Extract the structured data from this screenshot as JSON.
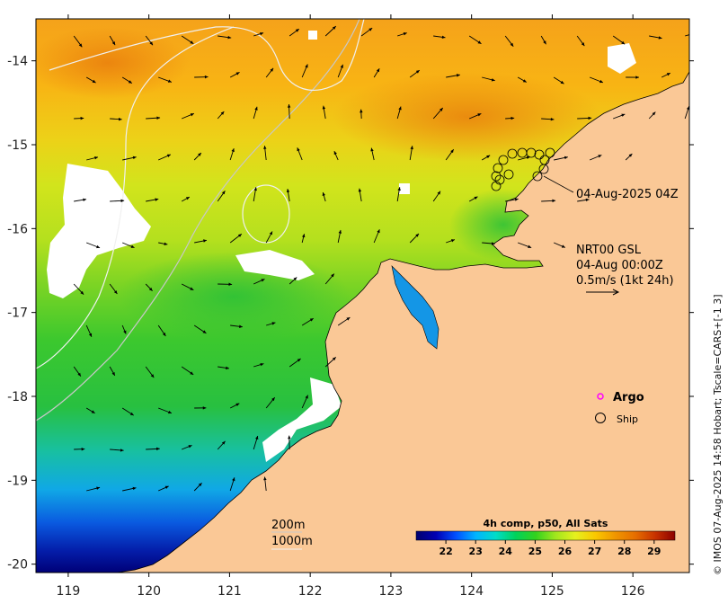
{
  "map": {
    "x_ticks": [
      "119",
      "120",
      "121",
      "122",
      "123",
      "124",
      "125",
      "126"
    ],
    "y_ticks": [
      "-14",
      "-15",
      "-16",
      "-17",
      "-18",
      "-19",
      "-20"
    ],
    "x_range": [
      118.6,
      126.7
    ],
    "y_range": [
      -20.1,
      -13.5
    ]
  },
  "annotations": {
    "ship_time": "04-Aug-2025 04Z",
    "current_title": "NRT00 GSL",
    "current_time": "04-Aug 00:00Z",
    "current_scale": "0.5m/s (1kt 24h)"
  },
  "legend": {
    "argo": "Argo",
    "ship": "Ship"
  },
  "isobaths": {
    "shallow": "200m",
    "deep": "1000m"
  },
  "colorbar": {
    "title": "4h comp, p50, All Sats",
    "ticks": [
      "22",
      "23",
      "24",
      "25",
      "26",
      "27",
      "28",
      "29"
    ],
    "range": [
      21,
      29.7
    ],
    "colors": [
      "#00006e",
      "#0000b4",
      "#0050ff",
      "#00b4ff",
      "#00dcc8",
      "#00d25a",
      "#32d21e",
      "#a0e61e",
      "#e6f01e",
      "#fac800",
      "#f09600",
      "#e66e00",
      "#c83200",
      "#8c0000"
    ]
  },
  "credit": "© IMOS 07-Aug-2025 14:58 Hobart; Tscale=CARS+[-1 3]",
  "colors": {
    "land": "#fac896",
    "cloud": "#ffffff",
    "argo": "#ff00ff"
  }
}
